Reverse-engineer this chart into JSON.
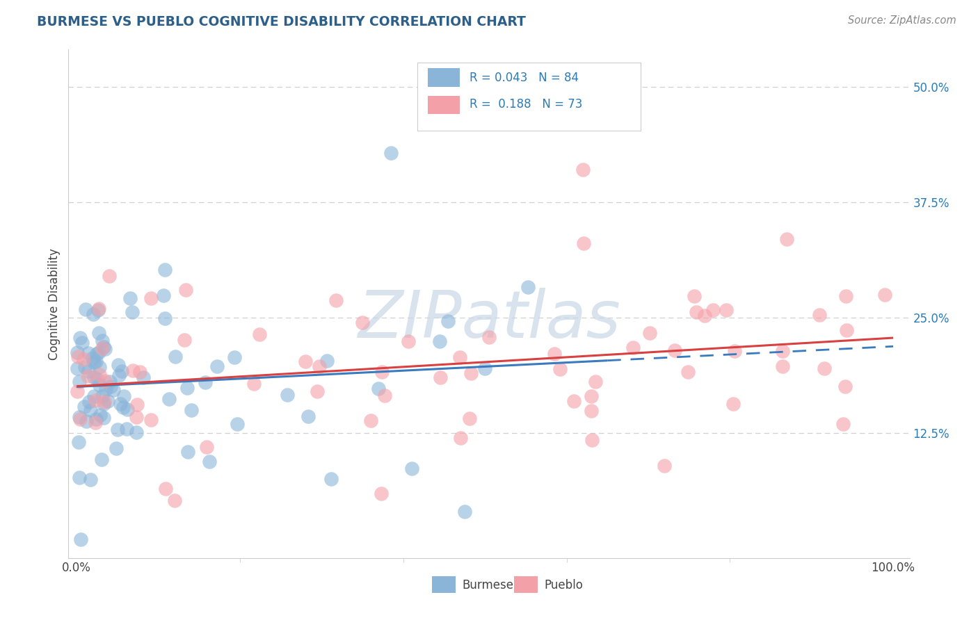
{
  "title": "BURMESE VS PUEBLO COGNITIVE DISABILITY CORRELATION CHART",
  "ylabel": "Cognitive Disability",
  "source": "Source: ZipAtlas.com",
  "xlim": [
    -0.01,
    1.02
  ],
  "ylim": [
    -0.01,
    0.54
  ],
  "ytick_values": [
    0.125,
    0.25,
    0.375,
    0.5
  ],
  "ytick_labels": [
    "12.5%",
    "25.0%",
    "37.5%",
    "50.0%"
  ],
  "xtick_values": [
    0.0,
    1.0
  ],
  "xtick_labels": [
    "0.0%",
    "100.0%"
  ],
  "burmese_R": 0.043,
  "burmese_N": 84,
  "pueblo_R": 0.188,
  "pueblo_N": 73,
  "burmese_color": "#8ab4d8",
  "pueblo_color": "#f4a0a8",
  "burmese_line_color": "#3a7abf",
  "pueblo_line_color": "#d94040",
  "title_color": "#2c5f8a",
  "source_color": "#888888",
  "legend_text_color": "#2c7bb6",
  "watermark_color": "#c8d8e8",
  "grid_color": "#d0d0d0",
  "spine_color": "#cccccc"
}
